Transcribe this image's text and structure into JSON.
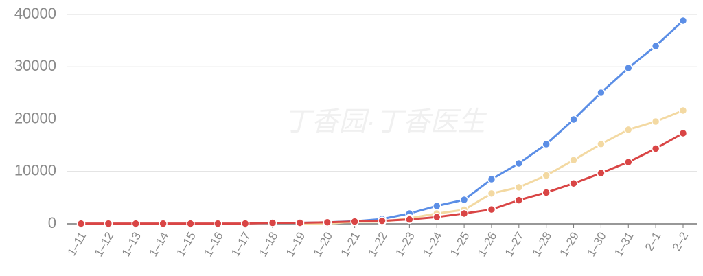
{
  "chart_data": {
    "type": "line",
    "watermark": "丁香园·丁香医生",
    "categories": [
      "1–11",
      "1–12",
      "1–13",
      "1–14",
      "1–15",
      "1–16",
      "1–17",
      "1–18",
      "1–19",
      "1–20",
      "1–21",
      "1–22",
      "1–23",
      "1–24",
      "1–25",
      "1–26",
      "1–27",
      "1–28",
      "1–29",
      "1–30",
      "1–31",
      "2–1",
      "2–2"
    ],
    "series": [
      {
        "color": "#5b8ee6",
        "values": [
          null,
          null,
          null,
          null,
          null,
          null,
          null,
          null,
          200,
          300,
          500,
          920,
          1970,
          3410,
          4590,
          8520,
          11540,
          15210,
          19930,
          25050,
          29770,
          33970,
          38820
        ]
      },
      {
        "color": "#f3d9a2",
        "values": [
          null,
          null,
          null,
          null,
          null,
          null,
          null,
          null,
          0,
          54,
          393,
          393,
          1072,
          1965,
          2684,
          5794,
          6973,
          9239,
          12167,
          15238,
          17988,
          19544,
          21640
        ]
      },
      {
        "color": "#d94545",
        "values": [
          41,
          41,
          41,
          41,
          41,
          45,
          62,
          200,
          198,
          291,
          440,
          571,
          830,
          1287,
          1975,
          2744,
          4515,
          5974,
          7711,
          9692,
          11791,
          14380,
          17311
        ]
      }
    ],
    "ylim": [
      0,
      40000
    ],
    "yticks": [
      0,
      10000,
      20000,
      30000,
      40000
    ],
    "grid": true
  }
}
